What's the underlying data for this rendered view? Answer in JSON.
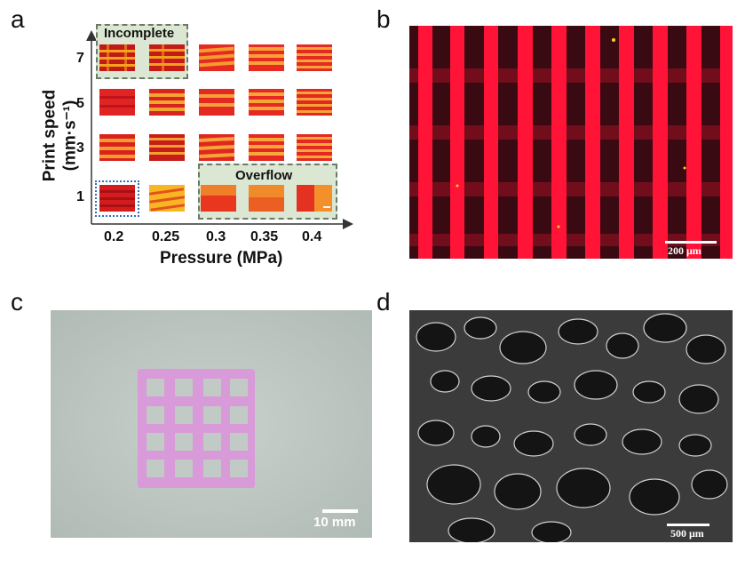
{
  "figure": {
    "panels": {
      "a": {
        "letter": "a",
        "y_axis_title": "Print speed (mm·s⁻¹)",
        "x_axis_title": "Pressure (MPa)",
        "y_ticks": [
          "7",
          "5",
          "3",
          "1"
        ],
        "x_ticks": [
          "0.2",
          "0.25",
          "0.3",
          "0.35",
          "0.4"
        ],
        "incomplete_label": "Incomplete",
        "overflow_label": "Overflow",
        "colors": {
          "fluor_red": "#e8192d",
          "fluor_yellow": "#f7b21c",
          "box_fill": "#dbe7d3",
          "box_border": "#6b7a66",
          "selected_border": "#2e6fb7"
        }
      },
      "b": {
        "letter": "b",
        "scale_bar": "200 μm"
      },
      "c": {
        "letter": "c",
        "scale_bar": "10 mm"
      },
      "d": {
        "letter": "d",
        "scale_bar": "500 μm"
      }
    }
  }
}
